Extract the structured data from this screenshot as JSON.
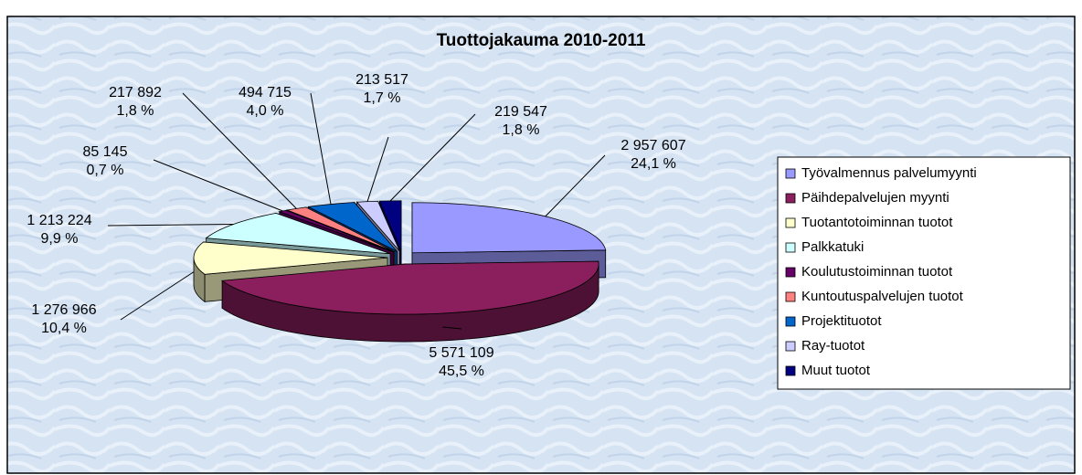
{
  "chart_data": {
    "type": "pie3d",
    "title": "Tuottojakauma 2010-2011",
    "categories": [
      "Työvalmennus palvelumyynti",
      "Päihdepalvelujen myynti",
      "Tuotantotoiminnan tuotot",
      "Palkkatuki",
      "Koulutustoiminnan tuotot",
      "Kuntoutuspalvelujen tuotot",
      "Projektituotot",
      "Ray-tuotot",
      "Muut tuotot"
    ],
    "values": [
      2957607,
      5571109,
      1276966,
      1213224,
      85145,
      217892,
      494715,
      213517,
      219547
    ],
    "value_labels": [
      "2 957 607",
      "5 571 109",
      "1 276 966",
      "1 213 224",
      "85 145",
      "217 892",
      "494 715",
      "213 517",
      "219 547"
    ],
    "percent_labels": [
      "24,1 %",
      "45,5 %",
      "10,4 %",
      "9,9 %",
      "0,7 %",
      "1,8 %",
      "4,0 %",
      "1,7 %",
      "1,8 %"
    ],
    "colors": [
      "#9999ff",
      "#8b1f5e",
      "#ffffcc",
      "#ccffff",
      "#660066",
      "#ff8080",
      "#0066cc",
      "#ccccff",
      "#000080"
    ],
    "legend": "right"
  }
}
